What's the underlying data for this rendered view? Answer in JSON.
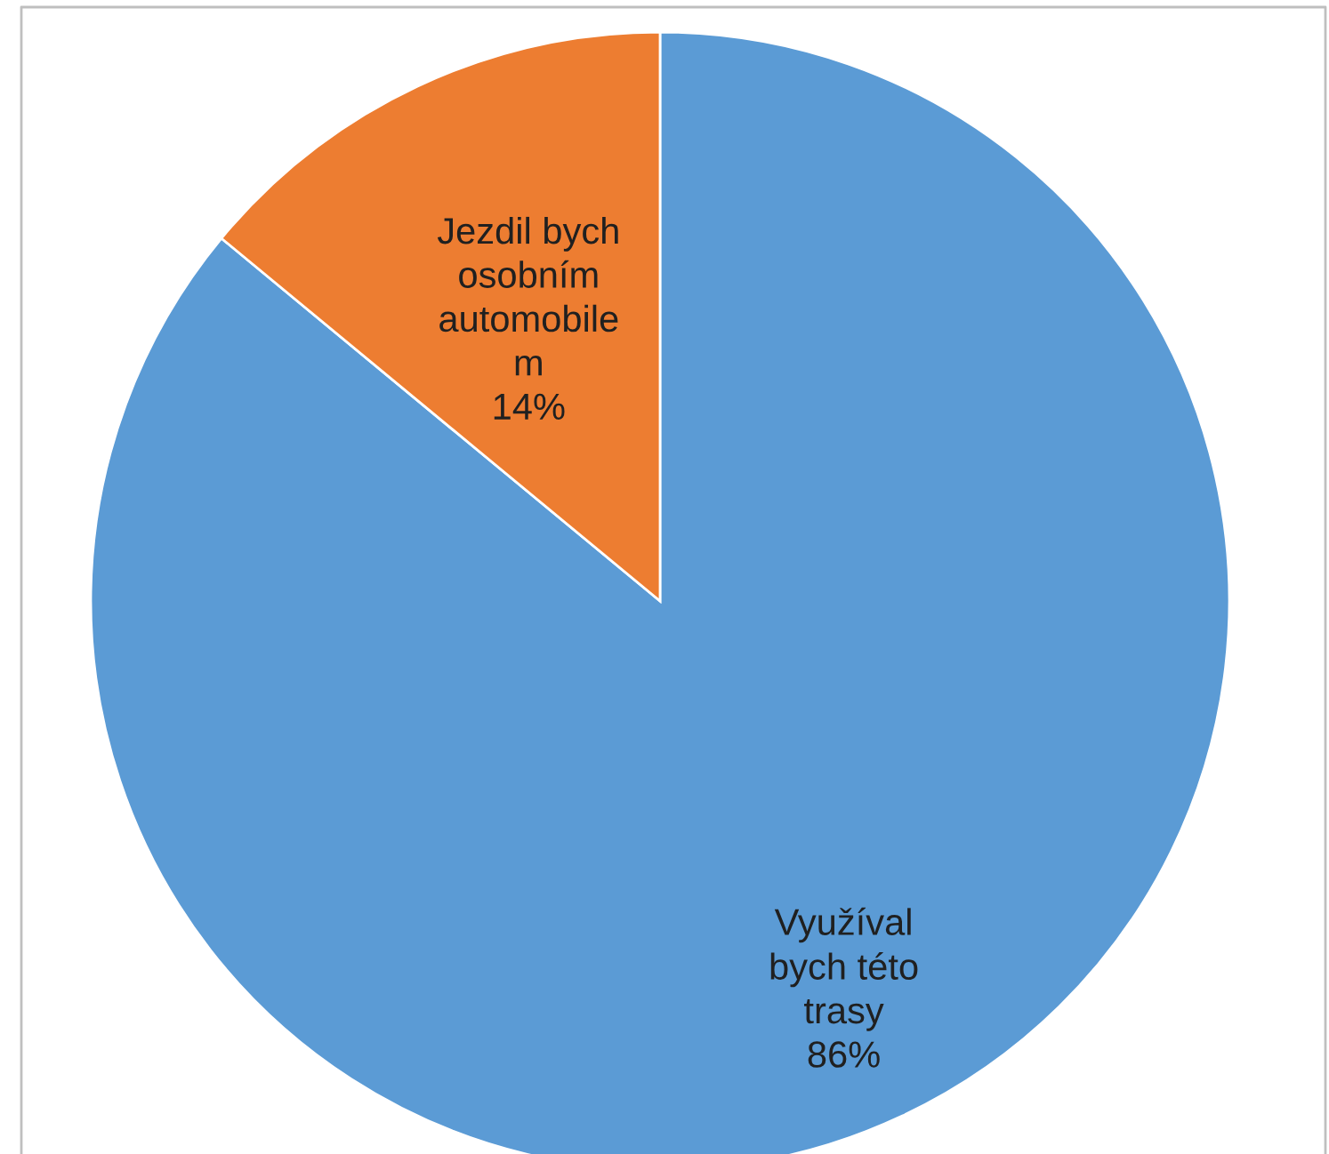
{
  "chart_data": {
    "type": "pie",
    "categories": [
      "Využíval\nbych této\ntrasy",
      "Jezdil bych\nosobním\nautomobile\nm"
    ],
    "values": [
      86,
      14
    ],
    "colors": [
      "#5b9bd5",
      "#ed7d31"
    ],
    "value_labels": [
      "86%",
      "14%"
    ],
    "legend": false
  }
}
